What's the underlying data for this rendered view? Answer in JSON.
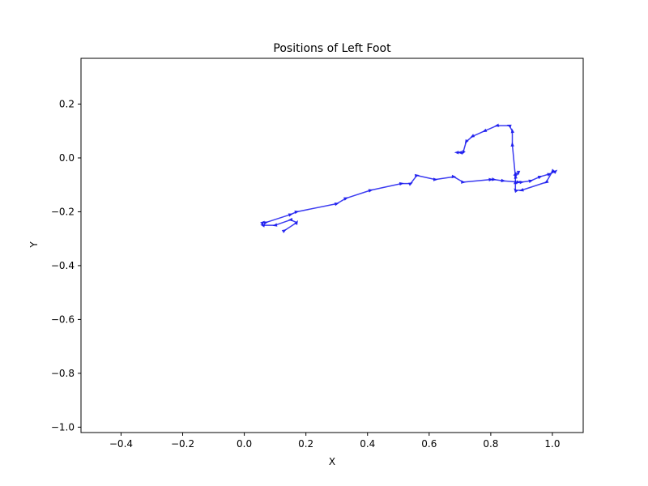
{
  "chart_data": {
    "type": "line",
    "title": "Positions of Left Foot",
    "xlabel": "X",
    "ylabel": "Y",
    "xlim": [
      -0.53,
      1.1
    ],
    "ylim": [
      -1.02,
      0.37
    ],
    "xticks": [
      -0.4,
      -0.2,
      0.0,
      0.2,
      0.4,
      0.6,
      0.8,
      1.0
    ],
    "yticks": [
      -1.0,
      -0.8,
      -0.6,
      -0.4,
      -0.2,
      0.0,
      0.2
    ],
    "xtick_labels": [
      "−0.4",
      "−0.2",
      "0.0",
      "0.2",
      "0.4",
      "0.6",
      "0.8",
      "1.0"
    ],
    "ytick_labels": [
      "−1.0",
      "−0.8",
      "−0.6",
      "−0.4",
      "−0.2",
      "0.0",
      "0.2"
    ],
    "grid": false,
    "series": [
      {
        "color": "#1a1aee",
        "marker": "triangle",
        "points": [
          [
            0.13,
            -0.27
          ],
          [
            0.17,
            -0.24
          ],
          [
            0.15,
            -0.23
          ],
          [
            0.1,
            -0.25
          ],
          [
            0.06,
            -0.25
          ],
          [
            0.06,
            -0.24
          ],
          [
            0.07,
            -0.24
          ],
          [
            0.15,
            -0.21
          ],
          [
            0.17,
            -0.2
          ],
          [
            0.3,
            -0.17
          ],
          [
            0.33,
            -0.15
          ],
          [
            0.41,
            -0.12
          ],
          [
            0.51,
            -0.095
          ],
          [
            0.54,
            -0.095
          ],
          [
            0.56,
            -0.065
          ],
          [
            0.62,
            -0.08
          ],
          [
            0.68,
            -0.07
          ],
          [
            0.71,
            -0.09
          ],
          [
            0.8,
            -0.08
          ],
          [
            0.81,
            -0.08
          ],
          [
            0.84,
            -0.085
          ],
          [
            0.89,
            -0.09
          ],
          [
            0.9,
            -0.09
          ],
          [
            0.93,
            -0.085
          ],
          [
            0.96,
            -0.07
          ],
          [
            0.99,
            -0.06
          ],
          [
            1.01,
            -0.05
          ],
          [
            1.0,
            -0.05
          ],
          [
            0.98,
            -0.09
          ],
          [
            0.9,
            -0.12
          ],
          [
            0.88,
            -0.12
          ],
          [
            0.88,
            -0.09
          ],
          [
            0.88,
            -0.06
          ],
          [
            0.89,
            -0.055
          ],
          [
            0.88,
            -0.07
          ],
          [
            0.87,
            0.05
          ],
          [
            0.87,
            0.1
          ],
          [
            0.86,
            0.12
          ],
          [
            0.82,
            0.12
          ],
          [
            0.78,
            0.1
          ],
          [
            0.74,
            0.08
          ],
          [
            0.72,
            0.06
          ],
          [
            0.71,
            0.02
          ],
          [
            0.7,
            0.02
          ],
          [
            0.69,
            0.02
          ]
        ]
      }
    ]
  }
}
